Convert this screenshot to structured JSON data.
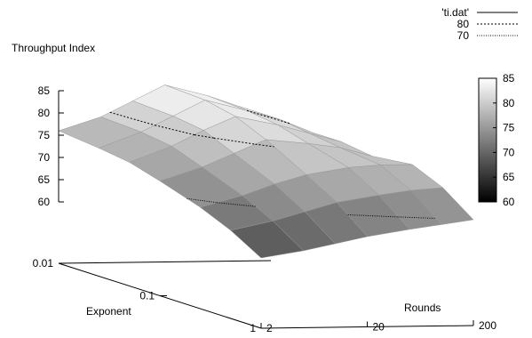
{
  "chart_data": {
    "type": "surface3d",
    "zlabel": "Throughput Index",
    "xlabel": "Exponent",
    "ylabel": "Rounds",
    "x_ticks": [
      "0.01",
      "0.1",
      "1"
    ],
    "y_ticks": [
      "2",
      "20",
      "200"
    ],
    "z_ticks": [
      "60",
      "65",
      "70",
      "75",
      "80",
      "85"
    ],
    "zlim": [
      60,
      85
    ],
    "x_scale": "log",
    "y_scale": "log",
    "x": [
      1,
      0.5,
      0.25,
      0.1,
      0.05,
      0.025,
      0.01
    ],
    "y": [
      2,
      5,
      10,
      20,
      50,
      100,
      200
    ],
    "z": [
      [
        62.0,
        63.5,
        65.0,
        66.5,
        68.0,
        69.0,
        70.0
      ],
      [
        66.0,
        68.0,
        70.0,
        72.0,
        73.5,
        74.5,
        75.0
      ],
      [
        69.0,
        71.5,
        74.0,
        76.0,
        77.5,
        78.0,
        78.0
      ],
      [
        72.0,
        75.0,
        78.0,
        81.0,
        80.0,
        79.0,
        77.0
      ],
      [
        74.0,
        77.5,
        81.0,
        84.0,
        82.0,
        80.0,
        78.0
      ],
      [
        75.0,
        78.5,
        82.0,
        85.5,
        83.0,
        81.0,
        78.0
      ],
      [
        76.0,
        79.0,
        82.5,
        86.0,
        83.5,
        81.0,
        77.0
      ]
    ],
    "contours": [
      {
        "label": "80",
        "level": 80,
        "style": "dashed"
      },
      {
        "label": "70",
        "level": 70,
        "style": "dotted"
      }
    ],
    "legend": [
      {
        "label": "'ti.dat'",
        "style": "solid"
      },
      {
        "label": "80",
        "style": "dashed"
      },
      {
        "label": "70",
        "style": "dotted"
      }
    ],
    "legend_position": "top-right",
    "colorbar": {
      "min": 60,
      "max": 85,
      "ticks": [
        "60",
        "65",
        "70",
        "75",
        "80",
        "85"
      ],
      "colors": [
        "#000000",
        "#ffffff"
      ]
    },
    "surface_colors": {
      "low": "#3a3a3a",
      "high": "#f4f4f4",
      "mesh": "#9a9a9a"
    }
  }
}
